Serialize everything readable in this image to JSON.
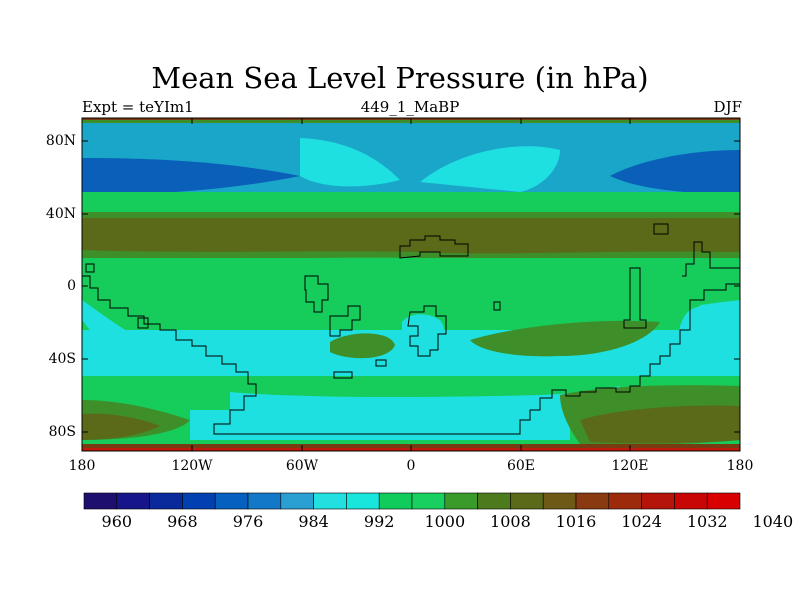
{
  "title": "Mean Sea Level Pressure (in hPa)",
  "subtitle_left": "Expt = teYIm1",
  "subtitle_center": "449_1_MaBP",
  "subtitle_right": "DJF",
  "lat_labels": [
    "80N",
    "40N",
    "0",
    "40S",
    "80S"
  ],
  "lon_labels": [
    "180",
    "120W",
    "60W",
    "0",
    "60E",
    "120E",
    "180"
  ],
  "colorbar": {
    "colors": [
      "#1c0f6e",
      "#16168a",
      "#0a2a9c",
      "#0040b0",
      "#0560c0",
      "#1478c8",
      "#2aa0d2",
      "#22e0e0",
      "#18e6dc",
      "#10cc5c",
      "#18d060",
      "#3a9a2a",
      "#4e7a1e",
      "#5a6a18",
      "#6e5a16",
      "#8a3a10",
      "#9e2a0c",
      "#b4140a",
      "#c80606",
      "#d80000"
    ],
    "labels": [
      "960",
      "968",
      "976",
      "984",
      "992",
      "1000",
      "1008",
      "1016",
      "1024",
      "1032",
      "1040"
    ]
  },
  "field_colors": {
    "teal": "#1aa6c8",
    "cyan": "#1fe0e0",
    "green": "#16cc5a",
    "darkgreen": "#3e8f2a",
    "olive": "#5a6a18",
    "blue": "#0a60b8",
    "brown": "#7a3a12",
    "red": "#c01a0a"
  }
}
